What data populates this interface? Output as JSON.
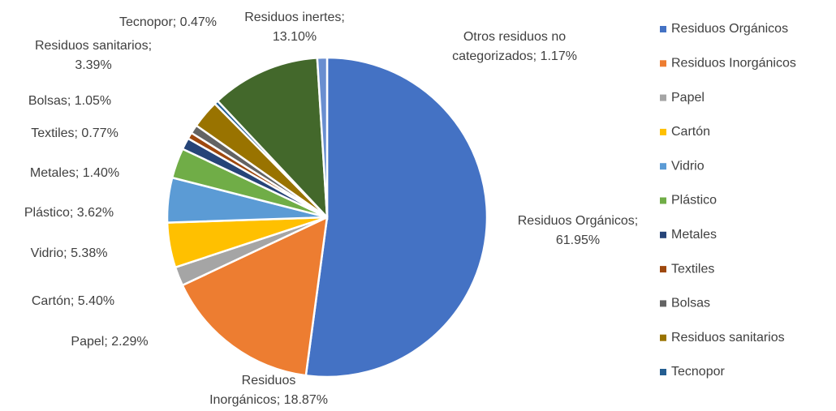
{
  "chart_data": {
    "type": "pie",
    "categories": [
      "Residuos Orgánicos",
      "Residuos Inorgánicos",
      "Papel",
      "Cartón",
      "Vidrio",
      "Plástico",
      "Metales",
      "Textiles",
      "Bolsas",
      "Residuos sanitarios",
      "Tecnopor",
      "Residuos inertes",
      "Otros residuos no categorizados"
    ],
    "values": [
      61.95,
      18.87,
      2.29,
      5.4,
      5.38,
      3.62,
      1.4,
      0.77,
      1.05,
      3.39,
      0.47,
      13.1,
      1.17
    ],
    "value_labels": [
      [
        "Residuos Orgánicos;",
        "61.95%"
      ],
      [
        "Residuos",
        "Inorgánicos; 18.87%"
      ],
      [
        "Papel; 2.29%"
      ],
      [
        "Cartón; 5.40%"
      ],
      [
        "Vidrio; 5.38%"
      ],
      [
        "Plástico; 3.62%"
      ],
      [
        "Metales; 1.40%"
      ],
      [
        "Textiles; 0.77%"
      ],
      [
        "Bolsas; 1.05%"
      ],
      [
        "Residuos sanitarios;",
        "3.39%"
      ],
      [
        "Tecnopor; 0.47%"
      ],
      [
        "Residuos inertes;",
        "13.10%"
      ],
      [
        "Otros residuos no",
        "categorizados; 1.17%"
      ]
    ],
    "colors": [
      "#4472c4",
      "#ed7d31",
      "#a5a5a5",
      "#ffc000",
      "#5b9bd5",
      "#70ad47",
      "#264478",
      "#9e480e",
      "#636363",
      "#997300",
      "#255e91",
      "#43682b",
      "#698ed0"
    ],
    "legend": "right"
  }
}
